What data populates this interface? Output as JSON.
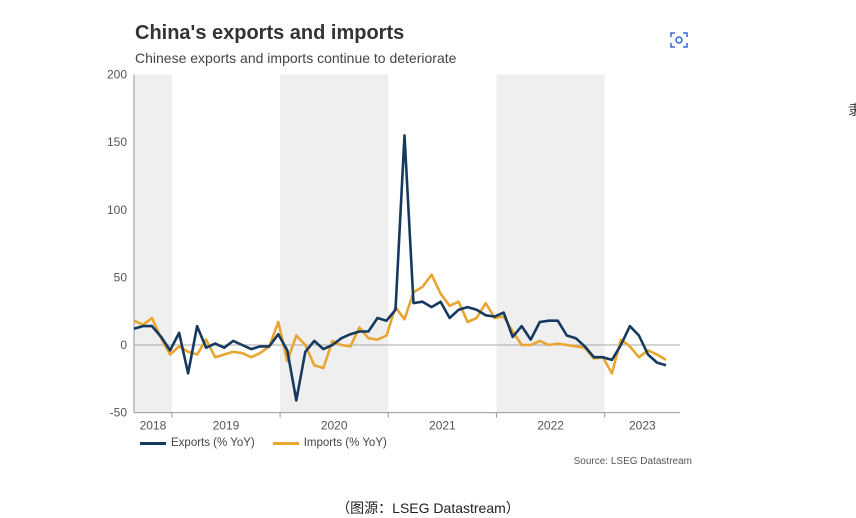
{
  "header": {
    "title": "China's exports and imports",
    "subtitle": "Chinese exports and imports continue to deteriorate",
    "scan_icon": "scan-icon"
  },
  "chart_data": {
    "type": "line",
    "title": "China's exports and imports",
    "subtitle": "Chinese exports and imports continue to deteriorate",
    "x_start": "2018-08",
    "x_end": "2023-07",
    "x_frequency": "monthly",
    "x_tick_labels": [
      "2018",
      "2019",
      "2020",
      "2021",
      "2022",
      "2023"
    ],
    "ylim": [
      -50,
      200
    ],
    "y_ticks": [
      -50,
      0,
      50,
      100,
      150,
      200
    ],
    "shaded_years": [
      "2018",
      "2020",
      "2022"
    ],
    "grid": false,
    "legend_position": "bottom-left",
    "series": [
      {
        "name": "Exports (% YoY)",
        "color": "#163a5f",
        "values": [
          12,
          14,
          14,
          6,
          -4,
          9,
          -21,
          14,
          -2,
          1,
          -2,
          3,
          0,
          -3,
          -1,
          -1,
          8,
          -4,
          -41,
          -5,
          3,
          -3,
          0,
          5,
          8,
          10,
          10,
          20,
          18,
          26,
          155,
          31,
          32,
          28,
          32,
          20,
          26,
          28,
          26,
          22,
          21,
          24,
          6,
          14,
          4,
          17,
          18,
          18,
          7,
          5,
          -1,
          -9,
          -9,
          -11,
          0,
          14,
          7,
          -7,
          -13,
          -15
        ]
      },
      {
        "name": "Imports (% YoY)",
        "color": "#e8a530",
        "values": [
          18,
          15,
          20,
          5,
          -7,
          -1,
          -5,
          -7,
          4,
          -9,
          -7,
          -5,
          -6,
          -9,
          -6,
          -1,
          17,
          -12,
          7,
          0,
          -15,
          -17,
          3,
          0,
          -1,
          13,
          5,
          4,
          7,
          28,
          19,
          39,
          43,
          52,
          38,
          29,
          32,
          17,
          20,
          31,
          20,
          21,
          10,
          0,
          0,
          3,
          0,
          1,
          0,
          -1,
          -2,
          -10,
          -9,
          -21,
          4,
          -1,
          -9,
          -4,
          -7,
          -11
        ]
      }
    ],
    "source": "Source: LSEG Datastream"
  },
  "caption": "（图源：LSEG Datastream）",
  "edge_text": "隶"
}
